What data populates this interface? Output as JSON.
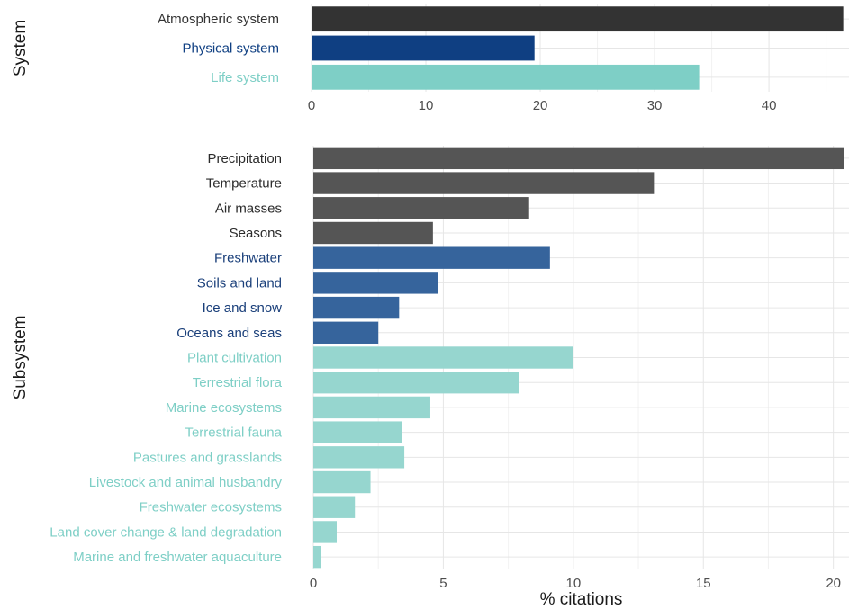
{
  "chart_data": [
    {
      "type": "bar",
      "orientation": "horizontal",
      "ylabel": "System",
      "xlabel": "",
      "xlim": [
        0,
        47
      ],
      "xticks": [
        0,
        10,
        20,
        30,
        40
      ],
      "grid": true,
      "categories": [
        "Atmospheric system",
        "Physical system",
        "Life system"
      ],
      "values": [
        46.5,
        19.5,
        33.9
      ],
      "colors": [
        "#333333",
        "#0f3f82",
        "#7ecfc6"
      ]
    },
    {
      "type": "bar",
      "orientation": "horizontal",
      "ylabel": "Subsystem",
      "xlabel": "% citations",
      "xlim": [
        0,
        20.6
      ],
      "xticks": [
        0,
        5,
        10,
        15,
        20
      ],
      "grid": true,
      "categories": [
        "Precipitation",
        "Temperature",
        "Air masses",
        "Seasons",
        "Freshwater",
        "Soils and land",
        "Ice and snow",
        "Oceans and seas",
        "Plant cultivation",
        "Terrestrial flora",
        "Marine ecosystems",
        "Terrestrial fauna",
        "Pastures and grasslands",
        "Livestock and animal husbandry",
        "Freshwater ecosystems",
        "Land cover change & land degradation",
        "Marine and freshwater aquaculture"
      ],
      "values": [
        20.4,
        13.1,
        8.3,
        4.6,
        9.1,
        4.8,
        3.3,
        2.5,
        10.0,
        7.9,
        4.5,
        3.4,
        3.5,
        2.2,
        1.6,
        0.9,
        0.3
      ],
      "group": [
        "atmospheric",
        "atmospheric",
        "atmospheric",
        "atmospheric",
        "physical",
        "physical",
        "physical",
        "physical",
        "life",
        "life",
        "life",
        "life",
        "life",
        "life",
        "life",
        "life",
        "life"
      ]
    }
  ],
  "colors": {
    "atmospheric_bar": "#555555",
    "atmospheric_label": "#2b2b2b",
    "physical_bar": "#36649c",
    "physical_label": "#1a3f7a",
    "life_bar": "#96d6cf",
    "life_label": "#7ecfc6"
  }
}
